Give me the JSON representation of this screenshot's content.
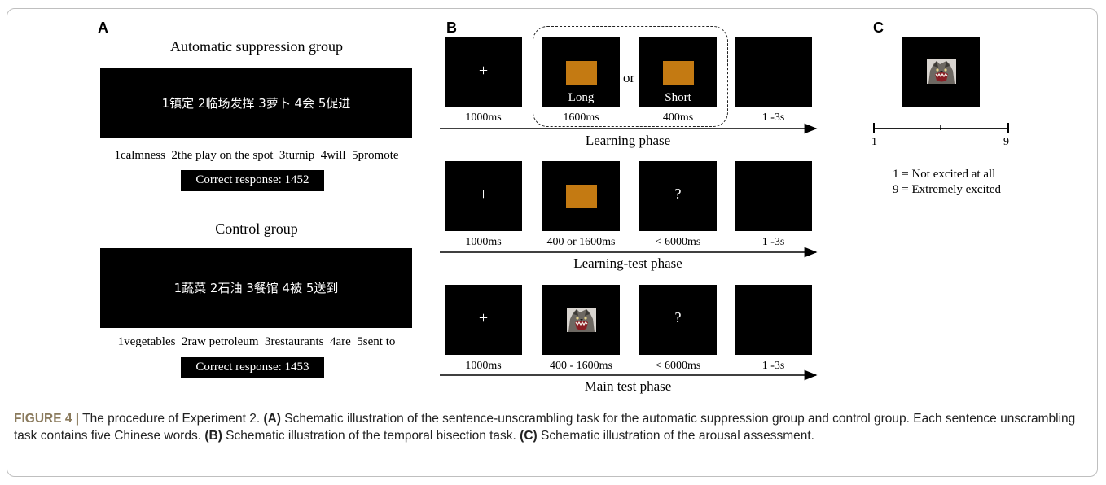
{
  "panel_a": {
    "letter": "A",
    "group1": {
      "title": "Automatic suppression group",
      "chinese": "1镇定 2临场发挥 3萝卜 4会 5促进",
      "english": "1calmness  2the play on the spot  3turnip  4will  5promote",
      "response": "Correct response: 1452"
    },
    "group2": {
      "title": "Control group",
      "chinese": "1蔬菜 2石油 3餐馆 4被 5送到",
      "english": "1vegetables  2raw petroleum  3restaurants  4are  5sent to",
      "response": "Correct response: 1453"
    }
  },
  "panel_b": {
    "letter": "B",
    "fixation": "+",
    "question": "?",
    "or_text": "or",
    "stimulus_color": "#c47a12",
    "learning": {
      "long_label": "Long",
      "short_label": "Short",
      "times": [
        "1000ms",
        "1600ms",
        "400ms",
        "1 -3s"
      ],
      "phase": "Learning phase"
    },
    "learning_test": {
      "times": [
        "1000ms",
        "400 or 1600ms",
        "< 6000ms",
        "1 -3s"
      ],
      "phase": "Learning-test phase"
    },
    "main_test": {
      "times": [
        "1000ms",
        "400 - 1600ms",
        "< 6000ms",
        "1 -3s"
      ],
      "phase": "Main test phase"
    }
  },
  "panel_c": {
    "letter": "C",
    "scale_min": "1",
    "scale_max": "9",
    "legend_min": "1 = Not excited at all",
    "legend_max": "9 = Extremely excited"
  },
  "caption": {
    "label": "FIGURE 4 |",
    "text": " The procedure of Experiment 2. ",
    "a_tag": "(A)",
    "a_text": " Schematic illustration of the sentence-unscrambling task for the automatic suppression group and control group. Each sentence unscrambling task contains five Chinese words. ",
    "b_tag": "(B)",
    "b_text": " Schematic illustration of the temporal bisection task. ",
    "c_tag": "(C)",
    "c_text": " Schematic illustration of the arousal assessment."
  }
}
